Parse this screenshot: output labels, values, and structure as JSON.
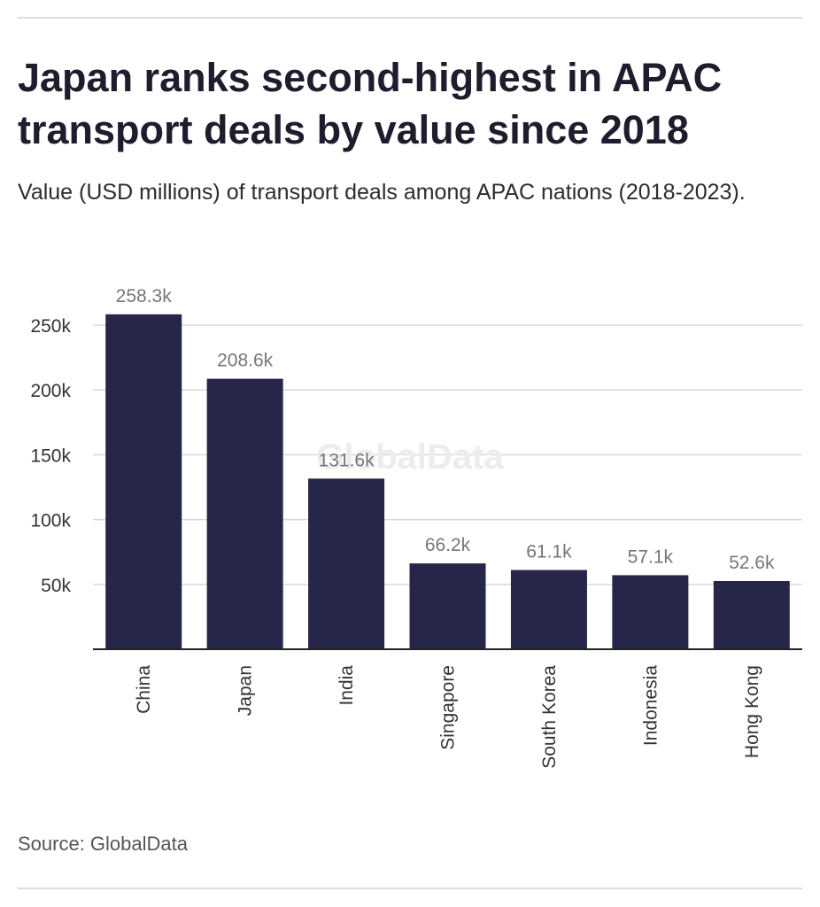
{
  "title": "Japan ranks second-highest in APAC transport deals by value since 2018",
  "subtitle": "Value (USD millions) of transport deals among APAC nations (2018-2023).",
  "source": "Source: GlobalData",
  "watermark": "GlobalData",
  "colors": {
    "bar": "#25264a",
    "grid": "#d9d9d9",
    "axis": "#222222",
    "tick_text": "#333333",
    "value_label": "#777777",
    "title": "#1d1d2e"
  },
  "chart_data": {
    "type": "bar",
    "title": "Japan ranks second-highest in APAC transport deals by value since 2018",
    "subtitle": "Value (USD millions) of transport deals among APAC nations (2018-2023).",
    "xlabel": "",
    "ylabel": "",
    "categories": [
      "China",
      "Japan",
      "India",
      "Singapore",
      "South Korea",
      "Indonesia",
      "Hong Kong"
    ],
    "values": [
      258300,
      208600,
      131600,
      66200,
      61100,
      57100,
      52600
    ],
    "data_labels": [
      "258.3k",
      "208.6k",
      "131.6k",
      "66.2k",
      "61.1k",
      "57.1k",
      "52.6k"
    ],
    "ylim": [
      0,
      250000
    ],
    "yticks": [
      50000,
      100000,
      150000,
      200000,
      250000
    ],
    "ytick_labels": [
      "50k",
      "100k",
      "150k",
      "200k",
      "250k"
    ],
    "grid": true,
    "legend": "none",
    "x_tick_rotation": "vertical"
  }
}
